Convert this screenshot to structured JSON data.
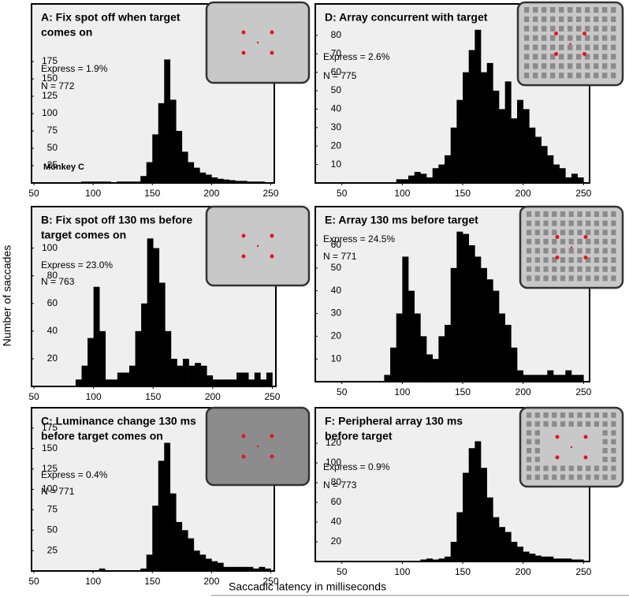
{
  "shared": {
    "ylabel": "Number of saccades",
    "xlabel": "Saccadic latency in milliseconds"
  },
  "chart_data": [
    {
      "type": "histogram",
      "title": [
        "A:  Fix spot off when target",
        "comes on"
      ],
      "annotations": [
        "Express = 1.9%",
        "N = 772",
        "Monkey C"
      ],
      "bins": [
        85,
        90,
        95,
        100,
        105,
        110,
        115,
        120,
        125,
        130,
        135,
        140,
        145,
        150,
        155,
        160,
        165,
        170,
        175,
        180,
        185,
        190,
        195,
        200,
        205,
        210,
        215,
        220,
        225,
        230,
        235,
        240,
        245,
        250
      ],
      "values": [
        0,
        2,
        2,
        2,
        2,
        2,
        0,
        2,
        2,
        2,
        2,
        10,
        30,
        70,
        115,
        178,
        120,
        75,
        45,
        30,
        22,
        15,
        12,
        8,
        6,
        5,
        4,
        3,
        3,
        2,
        2,
        2,
        0
      ],
      "color": "#000000",
      "xlim": [
        48,
        253
      ],
      "xticks": [
        50,
        100,
        150,
        200,
        250
      ],
      "ylim": [
        0,
        258
      ],
      "yticks": [
        25,
        50,
        75,
        100,
        125,
        150,
        175
      ]
    },
    {
      "type": "histogram",
      "title": [
        "B:  Fix spot off 130 ms before",
        "target comes on"
      ],
      "annotations": [
        "Express = 23.0%",
        "N = 763"
      ],
      "bins": [
        85,
        90,
        95,
        100,
        105,
        110,
        115,
        120,
        125,
        130,
        135,
        140,
        145,
        150,
        155,
        160,
        165,
        170,
        175,
        180,
        185,
        190,
        195,
        200,
        205,
        210,
        215,
        220,
        225,
        230,
        235,
        240,
        245,
        250
      ],
      "values": [
        5,
        15,
        35,
        72,
        40,
        5,
        5,
        10,
        10,
        15,
        40,
        60,
        107,
        100,
        75,
        40,
        20,
        15,
        20,
        15,
        17,
        15,
        8,
        5,
        5,
        5,
        5,
        10,
        10,
        5,
        10,
        5,
        10
      ],
      "color": "#000000",
      "xlim": [
        48,
        253
      ],
      "xticks": [
        50,
        100,
        150,
        200,
        250
      ],
      "ylim": [
        0,
        130
      ],
      "yticks": [
        20,
        40,
        60,
        80,
        100
      ]
    },
    {
      "type": "histogram",
      "title": [
        "C:  Luminance change 130 ms",
        "before target comes on"
      ],
      "annotations": [
        "Express = 0.4%",
        "N = 771"
      ],
      "bins": [
        85,
        90,
        95,
        100,
        105,
        110,
        115,
        120,
        125,
        130,
        135,
        140,
        145,
        150,
        155,
        160,
        165,
        170,
        175,
        180,
        185,
        190,
        195,
        200,
        205,
        210,
        215,
        220,
        225,
        230,
        235,
        240,
        245,
        250
      ],
      "values": [
        0,
        0,
        0,
        0,
        3,
        0,
        0,
        0,
        0,
        0,
        0,
        3,
        20,
        80,
        135,
        157,
        95,
        60,
        50,
        40,
        25,
        20,
        15,
        12,
        10,
        5,
        5,
        5,
        5,
        5,
        3,
        5,
        3
      ],
      "color": "#000000",
      "xlim": [
        48,
        253
      ],
      "xticks": [
        50,
        100,
        150,
        200,
        250
      ],
      "ylim": [
        0,
        200
      ],
      "yticks": [
        25,
        50,
        75,
        100,
        125,
        150,
        175
      ]
    },
    {
      "type": "histogram",
      "title": [
        "D:  Array concurrent with target"
      ],
      "annotations": [
        "Express = 2.6%",
        "N = 775"
      ],
      "bins": [
        85,
        90,
        95,
        100,
        105,
        110,
        115,
        120,
        125,
        130,
        135,
        140,
        145,
        150,
        155,
        160,
        165,
        170,
        175,
        180,
        185,
        190,
        195,
        200,
        205,
        210,
        215,
        220,
        225,
        230,
        235,
        240,
        245,
        250
      ],
      "values": [
        0,
        0,
        2,
        2,
        4,
        6,
        5,
        3,
        8,
        10,
        15,
        30,
        45,
        60,
        72,
        83,
        60,
        65,
        50,
        40,
        55,
        35,
        45,
        40,
        30,
        25,
        20,
        15,
        10,
        8,
        3,
        5,
        3
      ],
      "color": "#000000",
      "xlim": [
        28,
        255
      ],
      "xticks": [
        50,
        100,
        150,
        200,
        250
      ],
      "ylim": [
        0,
        97
      ],
      "yticks": [
        10,
        20,
        30,
        40,
        50,
        60,
        70,
        80
      ]
    },
    {
      "type": "histogram",
      "title": [
        "E:  Array 130 ms before target"
      ],
      "annotations": [
        "Express = 24.5%",
        "N = 771"
      ],
      "bins": [
        85,
        90,
        95,
        100,
        105,
        110,
        115,
        120,
        125,
        130,
        135,
        140,
        145,
        150,
        155,
        160,
        165,
        170,
        175,
        180,
        185,
        190,
        195,
        200,
        205,
        210,
        215,
        220,
        225,
        230,
        235,
        240,
        245,
        250
      ],
      "values": [
        3,
        15,
        30,
        55,
        40,
        30,
        20,
        12,
        10,
        20,
        25,
        50,
        66,
        65,
        60,
        55,
        50,
        45,
        40,
        30,
        25,
        15,
        5,
        3,
        3,
        3,
        3,
        5,
        3,
        3,
        5,
        3,
        3
      ],
      "color": "#000000",
      "xlim": [
        28,
        255
      ],
      "xticks": [
        50,
        100,
        150,
        200,
        250
      ],
      "ylim": [
        0,
        77
      ],
      "yticks": [
        10,
        20,
        30,
        40,
        50,
        60
      ]
    },
    {
      "type": "histogram",
      "title": [
        "F:  Peripheral array 130 ms",
        "before target"
      ],
      "annotations": [
        "Express = 0.9%",
        "N = 773"
      ],
      "bins": [
        85,
        90,
        95,
        100,
        105,
        110,
        115,
        120,
        125,
        130,
        135,
        140,
        145,
        150,
        155,
        160,
        165,
        170,
        175,
        180,
        185,
        190,
        195,
        200,
        205,
        210,
        215,
        220,
        225,
        230,
        235,
        240,
        245,
        250
      ],
      "values": [
        0,
        0,
        0,
        0,
        0,
        0,
        2,
        3,
        2,
        3,
        5,
        20,
        50,
        90,
        115,
        122,
        95,
        65,
        45,
        35,
        30,
        20,
        15,
        10,
        8,
        6,
        5,
        5,
        3,
        3,
        3,
        2,
        2
      ],
      "color": "#000000",
      "xlim": [
        28,
        255
      ],
      "xticks": [
        50,
        100,
        150,
        200,
        250
      ],
      "ylim": [
        0,
        156
      ],
      "yticks": [
        20,
        40,
        60,
        80,
        100,
        120
      ]
    }
  ]
}
